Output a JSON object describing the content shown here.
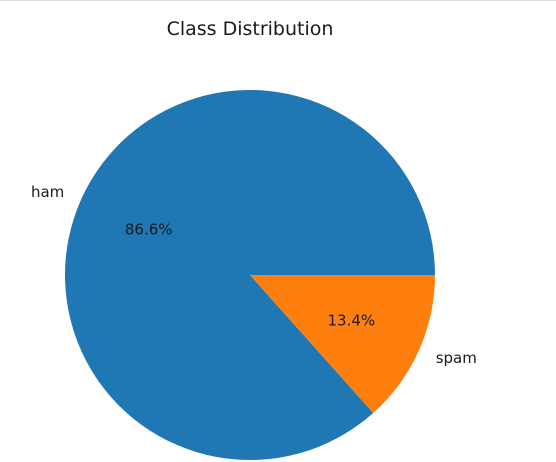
{
  "chart_data": {
    "type": "pie",
    "title": "Class Distribution",
    "slices": [
      {
        "label": "ham",
        "value": 86.6,
        "pct_label": "86.6%",
        "color": "#1f77b4"
      },
      {
        "label": "spam",
        "value": 13.4,
        "pct_label": "13.4%",
        "color": "#ff7f0e"
      }
    ],
    "start_angle_deg": 0,
    "direction": "counterclockwise"
  }
}
